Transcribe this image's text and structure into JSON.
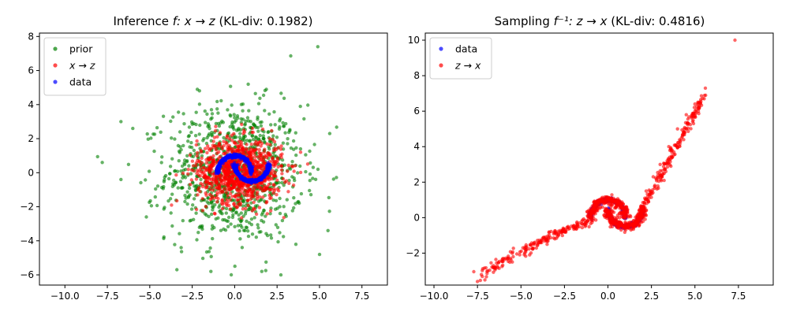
{
  "chart_data": [
    {
      "type": "scatter",
      "title": "Inference f: x → z (KL-div: 0.1982)",
      "title_parts": {
        "prefix": "Inference ",
        "math": "f: x → z",
        "suffix": " (KL-div: 0.1982)"
      },
      "xlabel": "",
      "ylabel": "",
      "xlim": [
        -11.5,
        9.0
      ],
      "ylim": [
        -6.6,
        8.2
      ],
      "xticks": [
        -10.0,
        -7.5,
        -5.0,
        -2.5,
        0.0,
        2.5,
        5.0,
        7.5
      ],
      "xtick_labels": [
        "−10.0",
        "−7.5",
        "−5.0",
        "−2.5",
        "0.0",
        "2.5",
        "5.0",
        "7.5"
      ],
      "yticks": [
        -6,
        -4,
        -2,
        0,
        2,
        4,
        6,
        8
      ],
      "ytick_labels": [
        "−6",
        "−4",
        "−2",
        "0",
        "2",
        "4",
        "6",
        "8"
      ],
      "grid": false,
      "legend_position": "top-left",
      "series": [
        {
          "name": "prior",
          "color": "#008000",
          "distribution": "gaussian",
          "mean": [
            0.0,
            0.0
          ],
          "std": [
            2.0,
            2.0
          ],
          "n_points": 1000,
          "outliers": [
            [
              -7.8,
              0.6
            ],
            [
              -6.7,
              3.0
            ],
            [
              -6.0,
              2.6
            ],
            [
              -6.7,
              -0.4
            ],
            [
              -5.2,
              -2.6
            ],
            [
              4.9,
              7.4
            ],
            [
              5.6,
              2.3
            ],
            [
              5.0,
              -4.8
            ],
            [
              5.5,
              -3.4
            ],
            [
              -3.4,
              -5.7
            ],
            [
              -1.4,
              -5.8
            ],
            [
              1.6,
              -5.8
            ],
            [
              -0.2,
              -6.0
            ],
            [
              -2.2,
              4.9
            ],
            [
              0.8,
              5.2
            ]
          ]
        },
        {
          "name": "x → z",
          "color": "#ff0000",
          "distribution": "gaussian",
          "mean": [
            0.3,
            0.1
          ],
          "std": [
            1.25,
            0.95
          ],
          "n_points": 1000
        },
        {
          "name": "data",
          "color": "#0000ff",
          "distribution": "two-moons",
          "n_points": 600,
          "noise": 0.05
        }
      ]
    },
    {
      "type": "scatter",
      "title": "Sampling f⁻¹: z → x (KL-div: 0.4816)",
      "title_parts": {
        "prefix": "Sampling ",
        "math": "f⁻¹: z → x",
        "suffix": " (KL-div: 0.4816)"
      },
      "xlabel": "",
      "ylabel": "",
      "xlim": [
        -10.5,
        9.5
      ],
      "ylim": [
        -3.8,
        10.4
      ],
      "xticks": [
        -10.0,
        -7.5,
        -5.0,
        -2.5,
        0.0,
        2.5,
        5.0,
        7.5
      ],
      "xtick_labels": [
        "−10.0",
        "−7.5",
        "−5.0",
        "−2.5",
        "0.0",
        "2.5",
        "5.0",
        "7.5"
      ],
      "yticks": [
        -2,
        0,
        2,
        4,
        6,
        8,
        10
      ],
      "ytick_labels": [
        "−2",
        "0",
        "2",
        "4",
        "6",
        "8",
        "10"
      ],
      "grid": false,
      "legend_position": "top-left",
      "series": [
        {
          "name": "data",
          "color": "#0000ff",
          "distribution": "two-moons",
          "n_points": 600,
          "noise": 0.05
        },
        {
          "name": "z → x",
          "color": "#ff0000",
          "distribution": "warped-two-moons",
          "n_points": 1000,
          "tail_points": [
            [
              -7.5,
              -3.6
            ],
            [
              -6.5,
              -2.8
            ],
            [
              -5.5,
              -2.5
            ],
            [
              -4.5,
              -2.1
            ],
            [
              -3.5,
              -1.5
            ],
            [
              -2.5,
              -0.8
            ],
            [
              -1.5,
              -0.2
            ],
            [
              2.2,
              1.5
            ],
            [
              2.6,
              2.3
            ],
            [
              3.0,
              3.0
            ],
            [
              3.5,
              4.0
            ],
            [
              4.0,
              5.0
            ],
            [
              4.5,
              5.8
            ],
            [
              5.0,
              6.4
            ],
            [
              5.6,
              7.3
            ],
            [
              7.3,
              10.0
            ]
          ]
        }
      ]
    }
  ]
}
